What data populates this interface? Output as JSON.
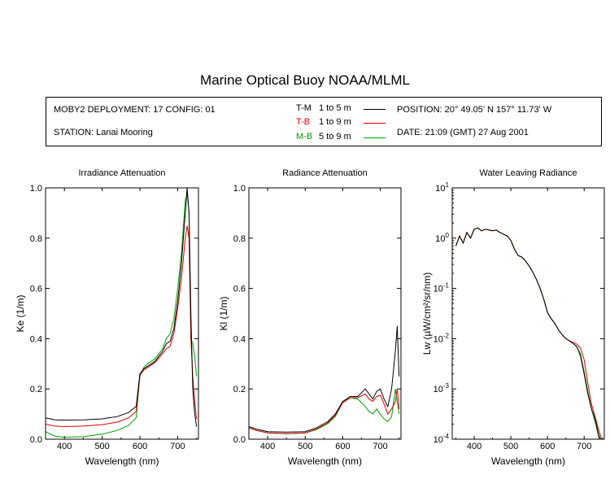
{
  "title": "Marine Optical Buoy NOAA/MLML",
  "info": {
    "deployment": "MOBY2 DEPLOYMENT: 17 CONFIG: 01",
    "station": "STATION: Lanai Mooring",
    "position": "POSITION: 20° 49.05' N   157° 11.73' W",
    "date": "DATE: 21:09 (GMT) 27 Aug 2001",
    "legend": [
      {
        "code": "T-M",
        "range": "1 to 5  m",
        "color": "#000000"
      },
      {
        "code": "T-B",
        "range": "1 to 9  m",
        "color": "#dd0000"
      },
      {
        "code": "M-B",
        "range": "5 to 9  m",
        "color": "#00a000"
      }
    ]
  },
  "chart_data": [
    {
      "type": "line",
      "title": "Irradiance Attenuation",
      "xlabel": "Wavelength (nm)",
      "ylabel": "Ke  (1/m)",
      "xlim": [
        350,
        755
      ],
      "ylim": [
        0,
        1.0
      ],
      "xticks": [
        400,
        500,
        600,
        700
      ],
      "yticks": [
        0,
        0.2,
        0.4,
        0.6,
        0.8,
        1.0
      ],
      "ytick_labels": [
        "0.0",
        "0.2",
        "0.4",
        "0.6",
        "0.8",
        "1.0"
      ],
      "series": [
        {
          "name": "T-M",
          "color": "#000000",
          "x": [
            350,
            375,
            400,
            450,
            500,
            540,
            570,
            590,
            600,
            610,
            620,
            640,
            660,
            670,
            680,
            690,
            700,
            710,
            720,
            725,
            730,
            735,
            740,
            745,
            750
          ],
          "y": [
            0.085,
            0.077,
            0.076,
            0.077,
            0.081,
            0.09,
            0.106,
            0.13,
            0.26,
            0.28,
            0.29,
            0.31,
            0.35,
            0.38,
            0.39,
            0.44,
            0.55,
            0.7,
            0.9,
            1.0,
            0.9,
            0.5,
            0.2,
            0.1,
            0.05
          ]
        },
        {
          "name": "T-B",
          "color": "#dd0000",
          "x": [
            350,
            375,
            400,
            450,
            500,
            540,
            570,
            590,
            600,
            610,
            620,
            640,
            660,
            670,
            680,
            690,
            700,
            710,
            720,
            725,
            730,
            735,
            740,
            745,
            750
          ],
          "y": [
            0.06,
            0.052,
            0.05,
            0.052,
            0.058,
            0.068,
            0.085,
            0.11,
            0.255,
            0.275,
            0.285,
            0.305,
            0.34,
            0.36,
            0.37,
            0.42,
            0.52,
            0.64,
            0.8,
            0.85,
            0.8,
            0.4,
            0.25,
            0.15,
            0.08
          ]
        },
        {
          "name": "M-B",
          "color": "#00a000",
          "x": [
            350,
            375,
            400,
            450,
            500,
            540,
            570,
            590,
            600,
            610,
            620,
            640,
            660,
            670,
            680,
            690,
            700,
            710,
            720,
            725,
            730,
            735,
            740,
            745,
            750
          ],
          "y": [
            0.03,
            0.012,
            0.008,
            0.01,
            0.02,
            0.035,
            0.055,
            0.085,
            0.25,
            0.285,
            0.3,
            0.32,
            0.36,
            0.4,
            0.42,
            0.48,
            0.6,
            0.74,
            0.95,
            0.98,
            0.9,
            0.4,
            0.38,
            0.33,
            0.25
          ]
        }
      ]
    },
    {
      "type": "line",
      "title": "Radiance Attenuation",
      "xlabel": "Wavelength (nm)",
      "ylabel": "Kl  (1/m)",
      "xlim": [
        350,
        755
      ],
      "ylim": [
        0,
        1.0
      ],
      "xticks": [
        400,
        500,
        600,
        700
      ],
      "yticks": [
        0,
        0.2,
        0.4,
        0.6,
        0.8,
        1.0
      ],
      "ytick_labels": [
        "0.0",
        "0.2",
        "0.4",
        "0.6",
        "0.8",
        "1.0"
      ],
      "series": [
        {
          "name": "T-M",
          "color": "#000000",
          "x": [
            350,
            370,
            400,
            450,
            500,
            530,
            560,
            580,
            590,
            600,
            620,
            640,
            660,
            670,
            680,
            690,
            700,
            710,
            720,
            730,
            740,
            745,
            750
          ],
          "y": [
            0.05,
            0.04,
            0.03,
            0.028,
            0.03,
            0.045,
            0.07,
            0.1,
            0.125,
            0.15,
            0.17,
            0.17,
            0.2,
            0.18,
            0.16,
            0.19,
            0.2,
            0.16,
            0.13,
            0.2,
            0.35,
            0.45,
            0.25
          ]
        },
        {
          "name": "T-B",
          "color": "#dd0000",
          "x": [
            350,
            370,
            400,
            450,
            500,
            530,
            560,
            580,
            590,
            600,
            620,
            640,
            660,
            670,
            680,
            690,
            700,
            710,
            720,
            730,
            740,
            745,
            750
          ],
          "y": [
            0.045,
            0.035,
            0.025,
            0.022,
            0.025,
            0.04,
            0.065,
            0.095,
            0.12,
            0.145,
            0.165,
            0.165,
            0.18,
            0.16,
            0.15,
            0.17,
            0.175,
            0.14,
            0.1,
            0.12,
            0.15,
            0.2,
            0.12
          ]
        },
        {
          "name": "M-B",
          "color": "#00a000",
          "x": [
            350,
            370,
            400,
            450,
            500,
            530,
            560,
            580,
            590,
            600,
            620,
            640,
            660,
            670,
            680,
            690,
            700,
            710,
            720,
            730,
            740,
            745,
            750
          ],
          "y": [
            0.045,
            0.035,
            0.025,
            0.022,
            0.025,
            0.038,
            0.062,
            0.09,
            0.118,
            0.15,
            0.165,
            0.16,
            0.13,
            0.11,
            0.1,
            0.12,
            0.1,
            0.08,
            0.07,
            0.09,
            0.2,
            0.15,
            0.1
          ]
        }
      ]
    },
    {
      "type": "line",
      "title": "Water Leaving Radiance",
      "xlabel": "Wavelength (nm)",
      "ylabel": "Lw  (µW/cm²/sr/nm)",
      "xlim": [
        340,
        755
      ],
      "ylim": [
        0.0001,
        10
      ],
      "yscale": "log",
      "xticks": [
        400,
        500,
        600,
        700
      ],
      "ytick_exponents": [
        -4,
        -3,
        -2,
        -1,
        0,
        1
      ],
      "series": [
        {
          "name": "T-M",
          "color": "#000000",
          "x": [
            350,
            360,
            370,
            380,
            390,
            400,
            410,
            420,
            430,
            440,
            450,
            460,
            470,
            480,
            490,
            500,
            510,
            520,
            530,
            540,
            550,
            560,
            570,
            580,
            590,
            600,
            610,
            620,
            630,
            640,
            650,
            660,
            670,
            680,
            690,
            700,
            710,
            720,
            730,
            740,
            750
          ],
          "y": [
            0.7,
            1.1,
            0.8,
            1.3,
            1.0,
            1.5,
            1.6,
            1.4,
            1.5,
            1.45,
            1.4,
            1.45,
            1.3,
            1.2,
            1.1,
            0.9,
            0.6,
            0.45,
            0.42,
            0.35,
            0.28,
            0.21,
            0.15,
            0.1,
            0.06,
            0.033,
            0.025,
            0.02,
            0.015,
            0.012,
            0.01,
            0.009,
            0.008,
            0.007,
            0.0045,
            0.002,
            0.0008,
            0.0004,
            0.00025,
            0.00012,
            8e-05
          ]
        },
        {
          "name": "T-B",
          "color": "#dd0000",
          "x": [
            350,
            360,
            370,
            380,
            390,
            400,
            410,
            420,
            430,
            440,
            450,
            460,
            470,
            480,
            490,
            500,
            510,
            520,
            530,
            540,
            550,
            560,
            570,
            580,
            590,
            600,
            610,
            620,
            630,
            640,
            650,
            660,
            670,
            680,
            690,
            700,
            710,
            720,
            730,
            740,
            750
          ],
          "y": [
            0.7,
            1.1,
            0.8,
            1.3,
            1.0,
            1.5,
            1.6,
            1.4,
            1.5,
            1.45,
            1.4,
            1.45,
            1.3,
            1.2,
            1.1,
            0.9,
            0.6,
            0.45,
            0.42,
            0.35,
            0.28,
            0.21,
            0.15,
            0.1,
            0.06,
            0.033,
            0.025,
            0.02,
            0.015,
            0.012,
            0.01,
            0.009,
            0.0085,
            0.0078,
            0.0065,
            0.0038,
            0.0013,
            0.0005,
            0.00028,
            0.00015,
            9e-05
          ]
        },
        {
          "name": "M-B",
          "color": "#00a000",
          "x": [
            350,
            360,
            370,
            380,
            390,
            400,
            410,
            420,
            430,
            440,
            450,
            460,
            470,
            480,
            490,
            500,
            510,
            520,
            530,
            540,
            550,
            560,
            570,
            580,
            590,
            600,
            610,
            620,
            630,
            640,
            650,
            660,
            670,
            680,
            690,
            700,
            710,
            720,
            730,
            740,
            750
          ],
          "y": [
            0.7,
            1.1,
            0.8,
            1.3,
            1.0,
            1.5,
            1.6,
            1.4,
            1.5,
            1.45,
            1.4,
            1.45,
            1.3,
            1.2,
            1.1,
            0.9,
            0.6,
            0.45,
            0.42,
            0.35,
            0.28,
            0.21,
            0.15,
            0.1,
            0.06,
            0.033,
            0.025,
            0.02,
            0.015,
            0.012,
            0.01,
            0.009,
            0.008,
            0.0068,
            0.005,
            0.0022,
            0.0009,
            0.0004,
            0.00022,
            0.00011,
            6e-05
          ]
        }
      ]
    }
  ]
}
